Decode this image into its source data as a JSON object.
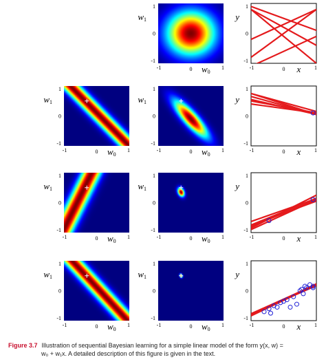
{
  "caption": {
    "label": "Figure 3.7",
    "line1": "Illustration of sequential Bayesian learning for a simple linear model of the form y(x, w) =",
    "line2": "w₀ + w₁x. A detailed description of this figure is given in the text."
  },
  "axis_labels": {
    "w0": "w",
    "w0_sub": "0",
    "w1": "w",
    "w1_sub": "1",
    "x": "x",
    "y": "y"
  },
  "ticks": {
    "neg": "-1",
    "zero": "0",
    "pos": "1"
  },
  "colors": {
    "line": "#e41a1c",
    "point": "#1f1fd6",
    "cross": "#ffffff"
  },
  "chart_data": {
    "type": "heatmap",
    "domain": [
      -1,
      1
    ],
    "rows": [
      {
        "likelihood": null,
        "posterior": {
          "mean": [
            0.0,
            0.0
          ],
          "sd": [
            0.5,
            0.5
          ],
          "rho": 0.0
        },
        "data_points": [],
        "lines": [
          [
            -0.6,
            0.5
          ],
          [
            0.2,
            -0.6
          ],
          [
            0.3,
            0.5
          ],
          [
            -0.1,
            -0.9
          ],
          [
            0.5,
            -0.4
          ],
          [
            0.0,
            0.8
          ]
        ]
      },
      {
        "likelihood": {
          "obs_x": 0.9,
          "obs_t": 0.1,
          "width": 0.2
        },
        "posterior": {
          "mean": [
            0.0,
            -0.1
          ],
          "sd": [
            0.35,
            0.42
          ],
          "rho": -0.85
        },
        "data_points": [
          [
            0.9,
            0.1
          ]
        ],
        "lines": [
          [
            0.3,
            -0.2
          ],
          [
            0.4,
            -0.35
          ],
          [
            0.25,
            -0.15
          ],
          [
            0.35,
            -0.3
          ],
          [
            0.3,
            -0.25
          ],
          [
            0.45,
            -0.3
          ]
        ]
      },
      {
        "likelihood": {
          "obs_x": -0.45,
          "obs_t": -0.6,
          "width": 0.2
        },
        "posterior": {
          "mean": [
            -0.3,
            0.35
          ],
          "sd": [
            0.07,
            0.1
          ],
          "rho": -0.3
        },
        "data_points": [
          [
            0.9,
            0.1
          ],
          [
            -0.45,
            -0.6
          ]
        ],
        "lines": [
          [
            -0.35,
            0.45
          ],
          [
            -0.4,
            0.5
          ],
          [
            -0.3,
            0.45
          ],
          [
            -0.25,
            0.38
          ],
          [
            -0.3,
            0.55
          ],
          [
            -0.35,
            0.4
          ]
        ]
      },
      {
        "likelihood": {
          "obs_x": 0.85,
          "obs_t": 0.1,
          "width": 0.2
        },
        "posterior": {
          "mean": [
            -0.3,
            0.5
          ],
          "sd": [
            0.03,
            0.04
          ],
          "rho": -0.2
        },
        "data_points": [
          [
            0.9,
            0.1
          ],
          [
            -0.45,
            -0.6
          ],
          [
            0.8,
            0.2
          ],
          [
            0.7,
            0.1
          ],
          [
            0.5,
            0.0
          ],
          [
            0.3,
            -0.2
          ],
          [
            0.6,
            -0.1
          ],
          [
            0.1,
            -0.3
          ],
          [
            -0.1,
            -0.4
          ],
          [
            0.2,
            -0.55
          ],
          [
            -0.3,
            -0.5
          ],
          [
            0.4,
            -0.45
          ],
          [
            0.0,
            -0.35
          ],
          [
            0.9,
            0.15
          ],
          [
            -0.6,
            -0.7
          ],
          [
            -0.2,
            -0.55
          ],
          [
            0.55,
            0.05
          ],
          [
            -0.4,
            -0.75
          ],
          [
            0.65,
            0.15
          ]
        ],
        "lines": [
          [
            -0.3,
            0.5
          ],
          [
            -0.32,
            0.52
          ],
          [
            -0.28,
            0.49
          ],
          [
            -0.31,
            0.48
          ],
          [
            -0.29,
            0.51
          ],
          [
            -0.3,
            0.53
          ]
        ]
      }
    ]
  }
}
